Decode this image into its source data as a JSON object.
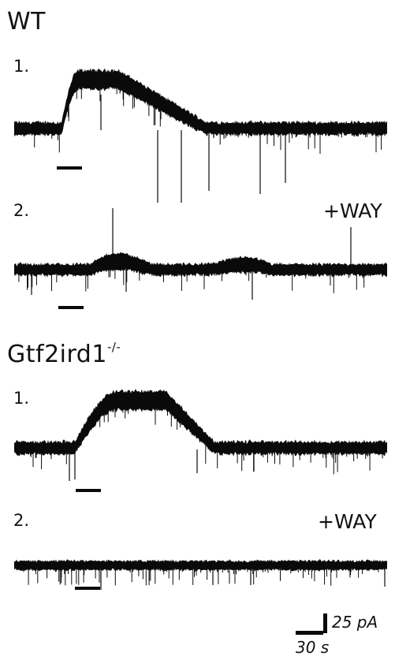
{
  "groups": [
    {
      "title": "WT",
      "title_suffix": "",
      "traces": [
        {
          "number": "1.",
          "drug_label": ""
        },
        {
          "number": "2.",
          "drug_label": "+WAY"
        }
      ]
    },
    {
      "title": "Gtf2ird1",
      "title_suffix": "-/-",
      "traces": [
        {
          "number": "1.",
          "drug_label": ""
        },
        {
          "number": "2.",
          "drug_label": "+WAY"
        }
      ]
    }
  ],
  "scale_bar": {
    "current_label": "25 pA",
    "time_label": "30 s"
  },
  "colors": {
    "trace": "#0a0a0a",
    "background": "#ffffff"
  }
}
